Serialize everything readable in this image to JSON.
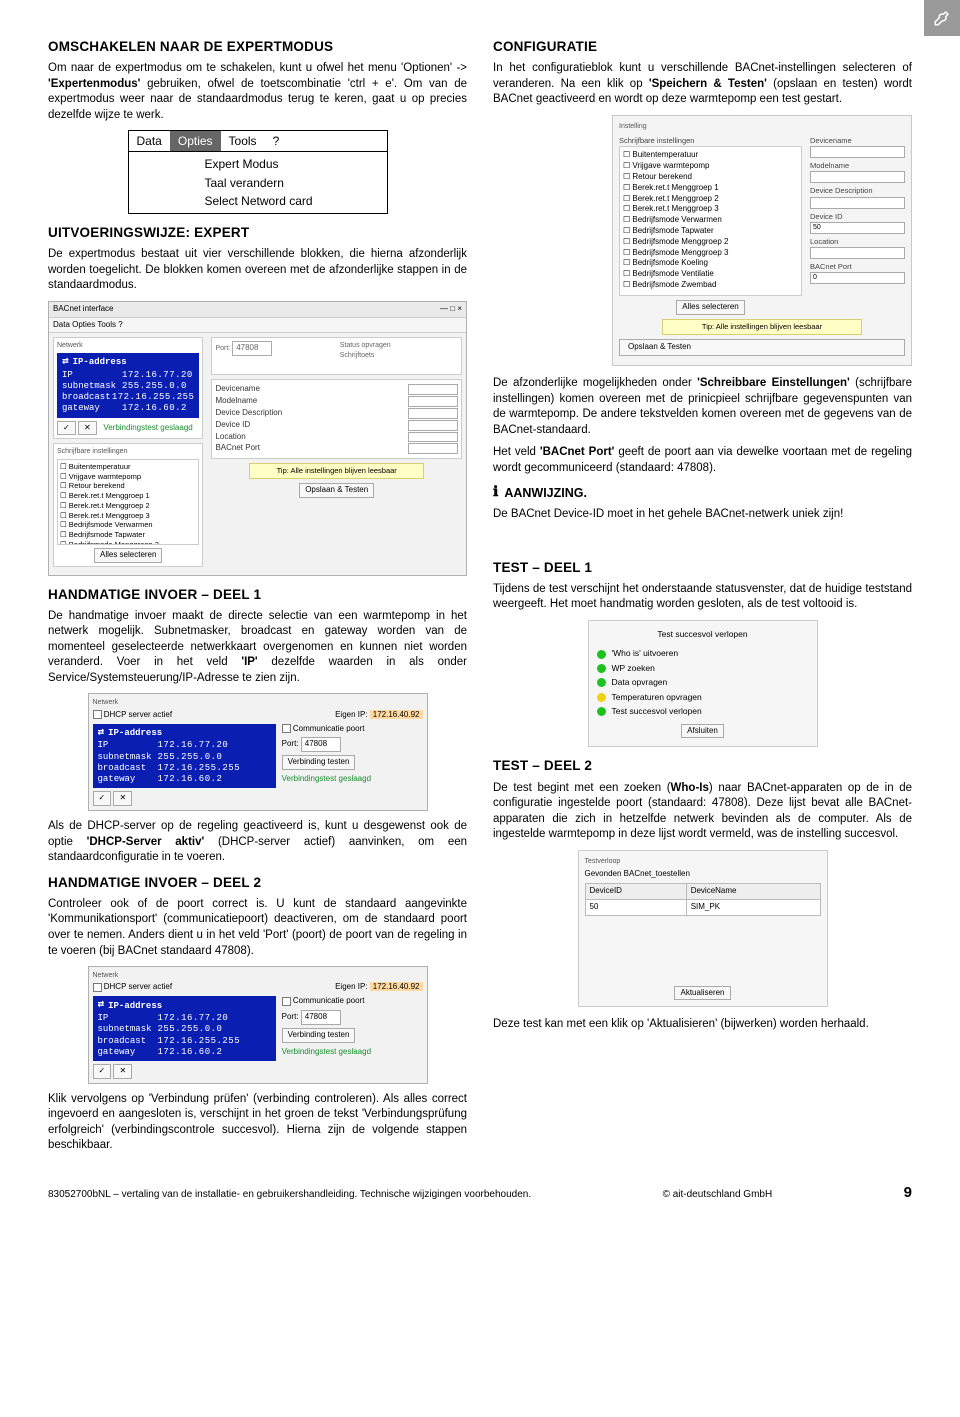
{
  "corner_icon": "wrench-icon",
  "left": {
    "h1": "OMSCHAKELEN NAAR DE EXPERTMODUS",
    "p1a": "Om naar de expertmodus om te schakelen, kunt u ofwel het menu 'Optionen' -> ",
    "p1b": "'Expertenmodus'",
    "p1c": " gebruiken, ofwel de toetscombinatie 'ctrl + e'. Om van de expertmodus weer naar de standaardmodus terug te keren, gaat u op precies dezelfde wijze te werk.",
    "menu": {
      "items": [
        "Data",
        "Opties",
        "Tools",
        "?"
      ],
      "dropdown": [
        "Expert Modus",
        "Taal verandern",
        "Select Netword card"
      ]
    },
    "h2": "UITVOERINGSWIJZE: EXPERT",
    "p2": "De expertmodus bestaat uit vier verschillende blokken, die hierna afzonderlijk worden toegelicht. De blokken komen overeen met de afzonderlijke stappen in de standaardmodus.",
    "app1": {
      "title": "BACnet interface",
      "menu": "Data  Opties  Tools  ?",
      "net_label": "Netwerk",
      "ip_hdr": "IP-address",
      "ip_rows": [
        [
          "IP",
          "172.16.77.20"
        ],
        [
          "subnetmask",
          "255.255.0.0"
        ],
        [
          "broadcast",
          "172.16.255.255"
        ],
        [
          "gateway",
          "172.16.60.2"
        ]
      ],
      "settings_title": "Schrijfbare instellingen",
      "settings": [
        "Buitentemperatuur",
        "Vrijgave warmtepomp",
        "Retour berekend",
        "Berek.ret.t Menggroep 1",
        "Berek.ret.t Menggroep 2",
        "Berek.ret.t Menggroep 3",
        "Bedrijfsmode Verwarmen",
        "Bedrijfsmode Tapwater",
        "Bedrijfsmode Menggroep 2",
        "Bedrijfsmode Menggroep 3",
        "Bedrijfsmode Koeling",
        "Bedrijfsmode Ventilatie",
        "Bedrijfsmode Zwembad"
      ],
      "right_labels": [
        "Devicename",
        "Modelname",
        "Device Description",
        "Device ID",
        "Location",
        "BACnet Port"
      ],
      "btn_all": "Alles selecteren",
      "btn_save": "Opslaan & Testen",
      "tip": "Tip: Alle instellingen blijven leesbaar"
    },
    "h3": "HANDMATIGE INVOER – DEEL 1",
    "p3a": "De handmatige invoer maakt de directe selectie van een warmtepomp in het netwerk mogelijk. Subnetmasker, broadcast en gateway worden van de momenteel geselecteerde netwerkkaart overgenomen en kunnen niet worden veranderd. Voer in het veld ",
    "p3b": "'IP'",
    "p3c": " dezelfde waarden in als onder Service/Systemsteuerung/IP-Adresse te zien zijn.",
    "net1": {
      "dhcp": "DHCP server actief",
      "eigen": "Eigen IP:",
      "eigen_v": "172.16.40.92",
      "comm": "Communicatie poort",
      "port_lbl": "Port:",
      "port_v": "47808",
      "btn_test": "Verbinding testen",
      "ok": "Verbindingstest geslaagd"
    },
    "p4a": "Als de DHCP-server op de regeling geactiveerd is, kunt u desgewenst ook de optie ",
    "p4b": "'DHCP-Server aktiv'",
    "p4c": " (DHCP-server actief) aanvinken, om een standaardconfiguratie in te voeren.",
    "h4": "HANDMATIGE INVOER – DEEL 2",
    "p5": "Controleer ook of de poort correct is. U kunt de standaard aangevinkte 'Kommunikationsport' (communicatiepoort) deactiveren, om de standaard poort over te nemen. Anders dient u in het veld 'Port' (poort) de poort van de regeling in te voeren (bij BACnet standaard 47808).",
    "p6": "Klik vervolgens op 'Verbindung prüfen' (verbinding controleren). Als alles correct ingevoerd en aangesloten is, verschijnt in het groen de tekst 'Verbindungsprüfung erfolgreich' (verbindingscontrole succesvol). Hierna zijn de volgende stappen beschikbaar."
  },
  "right": {
    "h1": "CONFIGURATIE",
    "p1a": "In het configuratieblok kunt u verschillende BACnet-instellingen selecteren of veranderen. Na een klik op ",
    "p1b": "'Speichern & Testen'",
    "p1c": " (opslaan en testen) wordt BACnet geactiveerd en wordt op deze warmtepomp een test gestart.",
    "cfg": {
      "grp": "Instelling",
      "list_lbl": "Schrijfbare instellingen",
      "items": [
        "Buitentemperatuur",
        "Vrijgave warmtepomp",
        "Retour berekend",
        "Berek.ret.t Menggroep 1",
        "Berek.ret.t Menggroep 2",
        "Berek.ret.t Menggroep 3",
        "Bedrijfsmode Verwarmen",
        "Bedrijfsmode Tapwater",
        "Bedrijfsmode Menggroep 2",
        "Bedrijfsmode Menggroep 3",
        "Bedrijfsmode Koeling",
        "Bedrijfsmode Ventilatie",
        "Bedrijfsmode Zwembad"
      ],
      "fields": [
        "Devicename",
        "Modelname",
        "Device Description",
        "Device ID",
        "Location",
        "BACnet Port"
      ],
      "vals": [
        "",
        "",
        "",
        "50",
        "",
        "0"
      ],
      "btn_all": "Alles selecteren",
      "tip": "Tip: Alle instellingen blijven leesbaar",
      "btn_save": "Opslaan & Testen"
    },
    "p2a": "De afzonderlijke mogelijkheden onder ",
    "p2b": "'Schreibbare Einstellungen'",
    "p2c": " (schrijfbare instellingen) komen overeen met de prinicpieel schrijfbare gegevenspunten van de warmtepomp. De andere tekstvelden komen overeen met de gegevens van de BACnet-standaard.",
    "p3a": "Het veld ",
    "p3b": "'BACnet Port'",
    "p3c": " geeft de poort aan via dewelke voortaan met de regeling wordt gecommuniceerd (standaard: 47808).",
    "note": "AANWIJZING.",
    "p4": "De BACnet Device-ID moet in het gehele BACnet-netwerk uniek zijn!",
    "h2": "TEST – DEEL 1",
    "p5": "Tijdens de test verschijnt het onderstaande statusvenster, dat de huidige teststand weergeeft. Het moet handmatig worden gesloten, als de test voltooid is.",
    "status": {
      "title": "Test succesvol verlopen",
      "rows": [
        {
          "c": "g",
          "t": "'Who is' uitvoeren"
        },
        {
          "c": "g",
          "t": "WP zoeken"
        },
        {
          "c": "g",
          "t": "Data opvragen"
        },
        {
          "c": "y",
          "t": "Temperaturen opvragen"
        },
        {
          "c": "g",
          "t": "Test succesvol verlopen"
        }
      ],
      "btn": "Afsluiten"
    },
    "h3": "TEST – DEEL 2",
    "p6a": "De test begint met een zoeken (",
    "p6b": "Who-Is",
    "p6c": ") naar BACnet-apparaten op de in de configuratie ingestelde poort (standaard: 47808). Deze lijst bevat alle BACnet-apparaten die zich in hetzelfde netwerk bevinden als de computer. Als de ingestelde warmtepomp in deze lijst wordt vermeld, was de instelling succesvol.",
    "dev": {
      "grp": "Testverloop",
      "sub": "Gevonden BACnet_toestellen",
      "cols": [
        "DeviceID",
        "DeviceName"
      ],
      "row": [
        "50",
        "SIM_PK"
      ],
      "btn": "Aktualiseren"
    },
    "p7": "Deze test kan met een klik op 'Aktualisieren' (bijwerken) worden herhaald."
  },
  "footer": {
    "left": "83052700bNL – vertaling van de installatie- en gebruikershandleiding. Technische wijzigingen voorbehouden.",
    "mid": "© ait-deutschland GmbH",
    "page": "9"
  }
}
